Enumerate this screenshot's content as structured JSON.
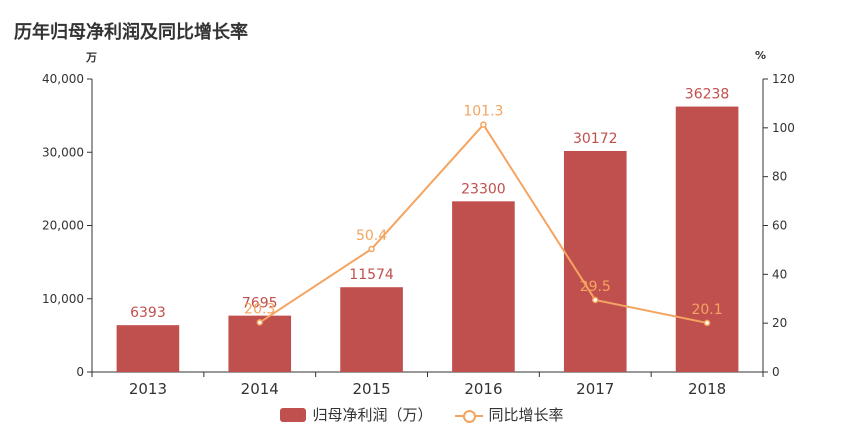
{
  "chart_data": {
    "type": "bar",
    "title": "历年归母净利润及同比增长率",
    "y_left_unit": "万",
    "y_right_unit": "%",
    "categories": [
      "2013",
      "2014",
      "2015",
      "2016",
      "2017",
      "2018"
    ],
    "series": [
      {
        "name": "归母净利润（万）",
        "type": "bar",
        "axis": "left",
        "color": "#c0504d",
        "values": [
          6393,
          7695,
          11574,
          23300,
          30172,
          36238
        ],
        "labels": [
          "6393",
          "7695",
          "11574",
          "23300",
          "30172",
          "36238"
        ]
      },
      {
        "name": "同比增长率",
        "type": "line",
        "axis": "right",
        "color": "#f4a460",
        "values": [
          null,
          20.3,
          50.4,
          101.3,
          29.5,
          20.1
        ],
        "labels": [
          "",
          "20.3",
          "50.4",
          "101.3",
          "29.5",
          "20.1"
        ]
      }
    ],
    "ylim_left": [
      0,
      40000
    ],
    "ylim_right": [
      0,
      120
    ],
    "yticks_left": [
      "0",
      "10,000",
      "20,000",
      "30,000",
      "40,000"
    ],
    "yticks_right": [
      "0",
      "20",
      "40",
      "60",
      "80",
      "100",
      "120"
    ],
    "grid": false,
    "legend_position": "bottom"
  }
}
